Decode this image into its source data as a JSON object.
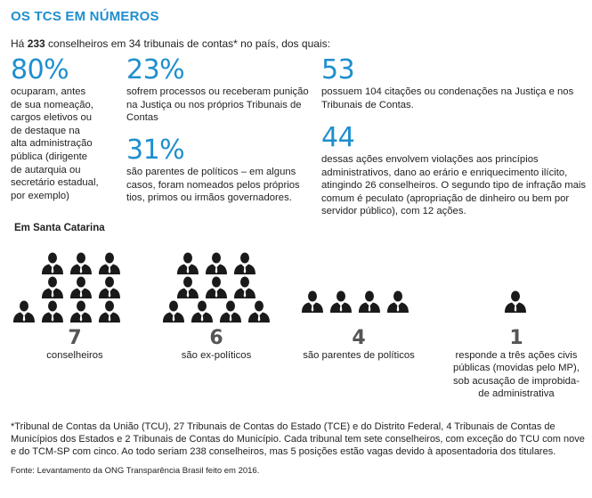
{
  "title": "OS TCS EM NÚMEROS",
  "intro": {
    "prefix": "Há ",
    "count": "233",
    "suffix": " conselheiros em 34 tribunais de contas* no país, dos quais:"
  },
  "stats": [
    {
      "value": "80%",
      "lines": [
        "ocuparam, antes",
        "de sua nomeação,",
        "cargos eletivos ou",
        "de destaque na",
        "alta administração",
        "pública (dirigente",
        "de autarquia ou",
        "secretário estadual,",
        "por exemplo)"
      ]
    },
    {
      "value": "23%",
      "lines": [
        "sofrem processos ou receberam punição",
        "na Justiça ou nos próprios Tribunais de",
        "Contas"
      ]
    },
    {
      "value": "31%",
      "lines": [
        "são parentes de políticos – em alguns",
        "casos, foram nomeados pelos próprios",
        "tios, primos ou irmãos governadores."
      ]
    },
    {
      "value": "53",
      "lines": [
        "possuem 104 citações ou condenações na Justiça e nos",
        "Tribunais de Contas."
      ]
    },
    {
      "value": "44",
      "lines": [
        "dessas ações envolvem violações aos princípios",
        "administrativos, dano ao erário e enriquecimento ilícito,",
        "atingindo 26 conselheiros. O segundo tipo de infração mais",
        "comum é peculato (apropriação de dinheiro ou bem por",
        "servidor público), com 12 ações."
      ]
    }
  ],
  "section_title": "Em Santa Catarina",
  "groups": [
    {
      "count": "7",
      "lines": [
        "conselheiros"
      ]
    },
    {
      "count": "6",
      "lines": [
        "são ex-políticos"
      ]
    },
    {
      "count": "4",
      "lines": [
        "são parentes de políticos"
      ]
    },
    {
      "count": "1",
      "lines": [
        "responde a três ações civis",
        "públicas (movidas pelo MP),",
        "sob acusação de improbida-",
        "de administrativa"
      ]
    }
  ],
  "footnote": "*Tribunal de Contas da União (TCU), 27 Tribunais de Contas do Estado (TCE) e do Distrito Federal, 4 Tribunais de Contas de Municípios dos Estados e 2 Tribunais de Contas do Município. Cada tribunal tem sete conselheiros, com exceção do TCU com nove e do TCM-SP com cinco. Ao todo seriam 238 conselheiros, mas 5 posições estão vagas devido à aposentadoria dos titulares.",
  "source": "Fonte: Levantamento da ONG Transparência Brasil feito em 2016.",
  "colors": {
    "accent": "#1e8fce",
    "icon": "#1a1a1a",
    "count": "#555555"
  },
  "icon_name": "person-suit-icon"
}
